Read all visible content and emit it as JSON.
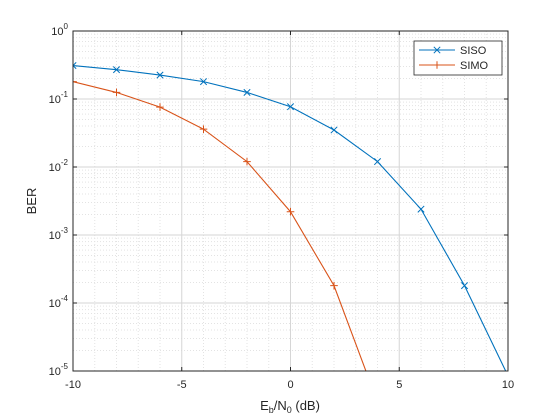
{
  "chart_data": {
    "type": "line",
    "xlabel": {
      "main": "E",
      "sub1": "b",
      "mid": "/N",
      "sub2": "0",
      "tail": " (dB)"
    },
    "ylabel": "BER",
    "xlim": [
      -10,
      10
    ],
    "ylim": [
      1e-05,
      1
    ],
    "yscale": "log",
    "grid": "major and minor",
    "legend_position": "top-right",
    "x_ticks": [
      "-10",
      "-5",
      "0",
      "5",
      "10"
    ],
    "y_ticks": [
      {
        "base": "10",
        "exp": "0"
      },
      {
        "base": "10",
        "exp": "-1"
      },
      {
        "base": "10",
        "exp": "-2"
      },
      {
        "base": "10",
        "exp": "-3"
      },
      {
        "base": "10",
        "exp": "-4"
      },
      {
        "base": "10",
        "exp": "-5"
      }
    ],
    "series": [
      {
        "name": "SISO",
        "color": "#0072bd",
        "marker": "x",
        "x": [
          -10,
          -8,
          -6,
          -4,
          -2,
          0,
          2,
          4,
          6,
          8,
          10
        ],
        "y": [
          0.31,
          0.27,
          0.225,
          0.18,
          0.125,
          0.077,
          0.035,
          0.012,
          0.0024,
          0.00018,
          8.5e-06
        ]
      },
      {
        "name": "SIMO",
        "color": "#d95319",
        "marker": "+",
        "x": [
          -10,
          -8,
          -6,
          -4,
          -2,
          0,
          2,
          4
        ],
        "y": [
          0.18,
          0.125,
          0.076,
          0.036,
          0.012,
          0.0022,
          0.00018,
          3.5e-06
        ]
      }
    ]
  }
}
